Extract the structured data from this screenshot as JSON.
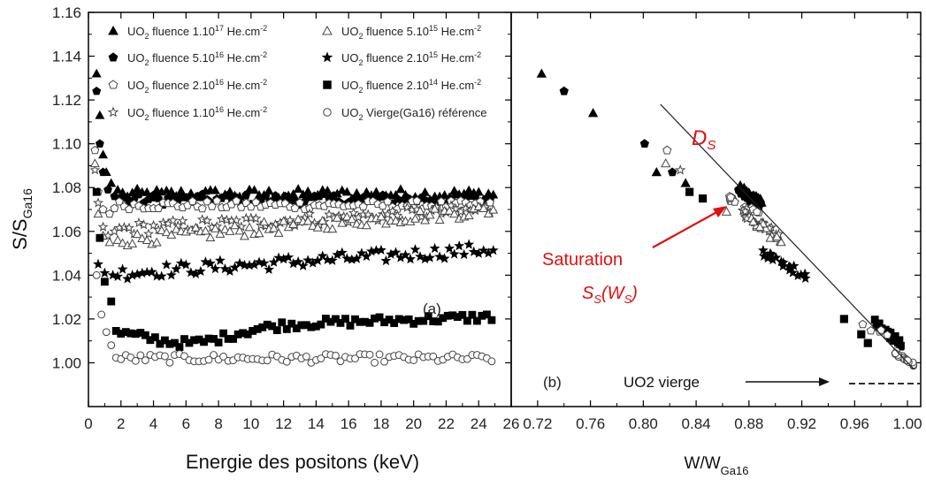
{
  "chart_data": [
    {
      "type": "scatter",
      "panel": "(a)",
      "xlabel": "Energie des positons (keV)",
      "ylabel_main": "S/S",
      "ylabel_sub": "Ga16",
      "xlim": [
        0,
        26
      ],
      "ylim": [
        0.98,
        1.16
      ],
      "xticks": [
        "0",
        "2",
        "4",
        "6",
        "8",
        "10",
        "12",
        "14",
        "16",
        "18",
        "20",
        "22",
        "24",
        "26"
      ],
      "yticks": [
        "1.00",
        "1.02",
        "1.04",
        "1.06",
        "1.08",
        "1.10",
        "1.12",
        "1.14",
        "1.16"
      ],
      "legend": [
        {
          "pre": "UO",
          "sub": "2",
          "mid": " fluence 1.10",
          "sup": "17",
          "post": " He.cm",
          "exp": "-2",
          "marker": "triangle-filled"
        },
        {
          "pre": "UO",
          "sub": "2",
          "mid": " fluence 5.10",
          "sup": "16",
          "post": " He.cm",
          "exp": "-2",
          "marker": "pentagon-filled"
        },
        {
          "pre": "UO",
          "sub": "2",
          "mid": " fluence 2.10",
          "sup": "16",
          "post": " He.cm",
          "exp": "-2",
          "marker": "pentagon-open"
        },
        {
          "pre": "UO",
          "sub": "2",
          "mid": " fluence 1.10",
          "sup": "16",
          "post": " He.cm",
          "exp": "-2",
          "marker": "star-open"
        },
        {
          "pre": "UO",
          "sub": "2",
          "mid": " fluence 5.10",
          "sup": "15",
          "post": " He.cm",
          "exp": "-2",
          "marker": "triangle-open"
        },
        {
          "pre": "UO",
          "sub": "2",
          "mid": " fluence 2.10",
          "sup": "15",
          "post": " He.cm",
          "exp": "-2",
          "marker": "star-filled"
        },
        {
          "pre": "UO",
          "sub": "2",
          "mid": " fluence 2.10",
          "sup": "14",
          "post": " He.cm",
          "exp": "-2",
          "marker": "square-filled"
        },
        {
          "pre": "UO",
          "sub": "2",
          "mid": " Vierge(Ga16) référence",
          "sup": "",
          "post": "",
          "exp": "",
          "marker": "circle-open"
        }
      ],
      "series": [
        {
          "marker": "triangle-filled",
          "start": [
            [
              0.5,
              1.132
            ],
            [
              0.7,
              1.113
            ],
            [
              0.9,
              1.095
            ],
            [
              1.1,
              1.087
            ],
            [
              1.4,
              1.082
            ],
            [
              1.8,
              1.079
            ]
          ],
          "base": 1.077,
          "noise": 0.0025
        },
        {
          "marker": "pentagon-filled",
          "start": [
            [
              0.5,
              1.124
            ],
            [
              0.7,
              1.1
            ],
            [
              0.9,
              1.087
            ],
            [
              1.2,
              1.079
            ],
            [
              1.6,
              1.076
            ]
          ],
          "base": 1.0745,
          "noise": 0.0025
        },
        {
          "marker": "pentagon-open",
          "start": [
            [
              0.4,
              1.097
            ],
            [
              0.6,
              1.078
            ],
            [
              0.9,
              1.07
            ],
            [
              1.3,
              1.068
            ]
          ],
          "base": 1.072,
          "noise": 0.002
        },
        {
          "marker": "star-open",
          "start": [
            [
              0.4,
              1.088
            ],
            [
              0.6,
              1.073
            ],
            [
              0.9,
              1.062
            ],
            [
              1.2,
              1.058
            ],
            [
              1.6,
              1.06
            ]
          ],
          "base_from": 1.061,
          "base_to": 1.07,
          "noise": 0.003
        },
        {
          "marker": "triangle-open",
          "start": [
            [
              0.4,
              1.091
            ],
            [
              0.6,
              1.068
            ],
            [
              0.9,
              1.058
            ],
            [
              1.3,
              1.055
            ],
            [
              1.8,
              1.056
            ]
          ],
          "base_from": 1.056,
          "base_to": 1.07,
          "noise": 0.003
        },
        {
          "marker": "star-filled",
          "start": [
            [
              0.6,
              1.045
            ],
            [
              1.0,
              1.041
            ],
            [
              1.5,
              1.04
            ]
          ],
          "base_from": 1.041,
          "base_to": 1.052,
          "noise": 0.003
        },
        {
          "marker": "square-filled",
          "start": [
            [
              0.5,
              1.078
            ],
            [
              0.7,
              1.057
            ],
            [
              1.0,
              1.037
            ],
            [
              1.4,
              1.028
            ]
          ],
          "base_from": 1.015,
          "base_to": 1.021,
          "dip": 1.009,
          "noise": 0.002
        },
        {
          "marker": "circle-open",
          "start": [
            [
              0.5,
              1.04
            ],
            [
              0.8,
              1.022
            ],
            [
              1.1,
              1.014
            ],
            [
              1.4,
              1.008
            ]
          ],
          "base": 1.002,
          "noise": 0.002
        }
      ],
      "annotation": "(a)"
    },
    {
      "type": "scatter",
      "panel": "(b)",
      "xlabel_main": "W/W",
      "xlabel_sub": "Ga16",
      "xlim": [
        0.7,
        1.01
      ],
      "ylim": [
        0.98,
        1.16
      ],
      "xticks": [
        "0.72",
        "0.76",
        "0.80",
        "0.84",
        "0.88",
        "0.92",
        "0.96",
        "1.00"
      ],
      "xtick_values": [
        0.72,
        0.76,
        0.8,
        0.84,
        0.88,
        0.92,
        0.96,
        1.0
      ],
      "points": [
        {
          "marker": "triangle-filled",
          "x": 0.723,
          "y": 1.132
        },
        {
          "marker": "pentagon-filled",
          "x": 0.74,
          "y": 1.124
        },
        {
          "marker": "triangle-filled",
          "x": 0.762,
          "y": 1.114
        },
        {
          "marker": "pentagon-filled",
          "x": 0.801,
          "y": 1.1
        },
        {
          "marker": "pentagon-open",
          "x": 0.818,
          "y": 1.097
        },
        {
          "marker": "triangle-filled",
          "x": 0.81,
          "y": 1.087
        },
        {
          "marker": "pentagon-filled",
          "x": 0.822,
          "y": 1.087
        },
        {
          "marker": "triangle-open",
          "x": 0.817,
          "y": 1.091
        },
        {
          "marker": "star-open",
          "x": 0.828,
          "y": 1.088
        },
        {
          "marker": "triangle-filled",
          "x": 0.832,
          "y": 1.082
        },
        {
          "marker": "square-filled",
          "x": 0.835,
          "y": 1.078
        },
        {
          "marker": "square-filled",
          "x": 0.845,
          "y": 1.075
        },
        {
          "marker": "triangle-open",
          "x": 0.863,
          "y": 1.069
        },
        {
          "marker": "square-filled",
          "x": 0.952,
          "y": 1.02
        },
        {
          "marker": "square-filled",
          "x": 0.965,
          "y": 1.013
        },
        {
          "marker": "square-filled",
          "x": 0.97,
          "y": 1.009
        }
      ],
      "clusters": [
        {
          "marker": "triangle-filled",
          "x": [
            0.872,
            0.89
          ],
          "y": [
            1.072,
            1.082
          ],
          "n": 30
        },
        {
          "marker": "pentagon-filled",
          "x": [
            0.872,
            0.888
          ],
          "y": [
            1.07,
            1.08
          ],
          "n": 28
        },
        {
          "marker": "pentagon-open",
          "x": [
            0.865,
            0.89
          ],
          "y": [
            1.065,
            1.077
          ],
          "n": 16
        },
        {
          "marker": "star-open",
          "x": [
            0.875,
            0.905
          ],
          "y": [
            1.055,
            1.07
          ],
          "n": 18
        },
        {
          "marker": "triangle-open",
          "x": [
            0.878,
            0.905
          ],
          "y": [
            1.052,
            1.07
          ],
          "n": 16
        },
        {
          "marker": "star-filled",
          "x": [
            0.89,
            0.925
          ],
          "y": [
            1.037,
            1.052
          ],
          "n": 22
        },
        {
          "marker": "square-filled",
          "x": [
            0.975,
            0.995
          ],
          "y": [
            1.007,
            1.02
          ],
          "n": 20
        },
        {
          "marker": "circle-open",
          "x": [
            0.99,
            1.005
          ],
          "y": [
            0.998,
            1.006
          ],
          "n": 22
        },
        {
          "marker": "pentagon-open",
          "x": [
            0.96,
            0.99
          ],
          "y": [
            1.01,
            1.02
          ],
          "n": 5
        }
      ],
      "line_Ds": {
        "x1": 0.813,
        "y1": 1.118,
        "x2": 1.005,
        "y2": 0.997
      },
      "annotations": {
        "Ds": "D",
        "Ds_sub": "S",
        "saturation": "Saturation",
        "ss_main": "S",
        "ss_sub": "S",
        "ss_mid": "(W",
        "ss_sub2": "S",
        "ss_end": ")",
        "vierge": "UO2 vierge",
        "panel": "(b)"
      },
      "colors": {
        "annotation": "#e01010",
        "text": "#111111"
      }
    }
  ]
}
